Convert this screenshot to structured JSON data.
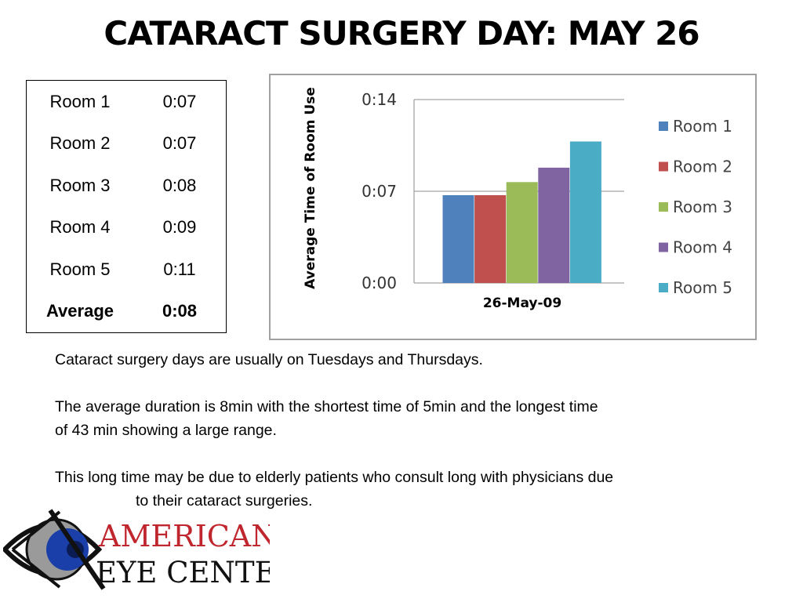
{
  "title": "CATARACT SURGERY DAY: MAY 26",
  "table": {
    "rows": [
      {
        "label": "Room 1",
        "value": "0:07"
      },
      {
        "label": "Room 2",
        "value": "0:07"
      },
      {
        "label": "Room 3",
        "value": "0:08"
      },
      {
        "label": "Room 4",
        "value": "0:09"
      },
      {
        "label": "Room 5",
        "value": "0:11"
      }
    ],
    "average": {
      "label": "Average",
      "value": "0:08"
    }
  },
  "chart_data": {
    "type": "bar",
    "categories": [
      "26-May-09"
    ],
    "series": [
      {
        "name": "Room 1",
        "values": [
          6.7
        ],
        "color": "#4f81bd"
      },
      {
        "name": "Room 2",
        "values": [
          6.7
        ],
        "color": "#c0504d"
      },
      {
        "name": "Room 3",
        "values": [
          7.7
        ],
        "color": "#9bbb59"
      },
      {
        "name": "Room 4",
        "values": [
          8.8
        ],
        "color": "#8064a2"
      },
      {
        "name": "Room 5",
        "values": [
          10.8
        ],
        "color": "#4bacc6"
      }
    ],
    "ylabel": "Average Time of Room Use",
    "ylim": [
      0,
      14
    ],
    "yticks": [
      0,
      7,
      14
    ],
    "ytick_labels": [
      "0:00",
      "0:07",
      "0:14"
    ],
    "grid": true,
    "legend": "right"
  },
  "paragraphs": {
    "p1": "Cataract surgery days are usually on Tuesdays and Thursdays.",
    "p2a": "The average duration is 8min with the shortest time of 5min and the longest time",
    "p2b": "of 43 min showing a large range.",
    "p3a": "This long time may be due to elderly patients who consult long with physicians due",
    "p3b": "to their cataract surgeries."
  },
  "logo": {
    "line1": "AMERICAN",
    "line2": "EYE CENTER",
    "color_red": "#c0262d",
    "color_blue": "#1a3fa8"
  }
}
